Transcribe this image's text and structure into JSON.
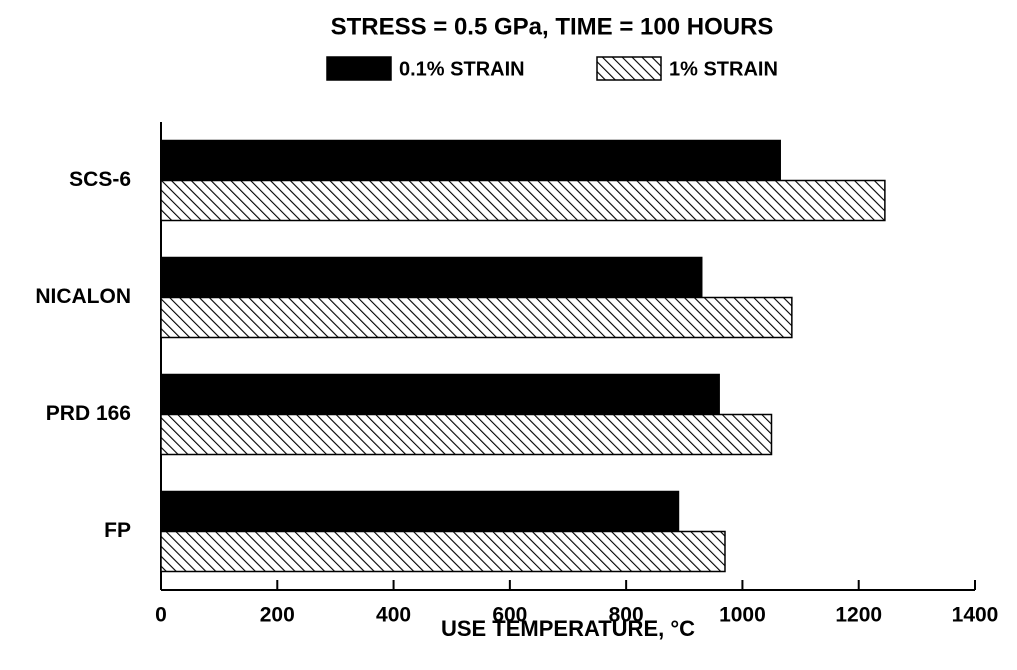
{
  "chart_data": {
    "type": "hbar",
    "title": "STRESS = 0.5 GPa, TIME = 100 HOURS",
    "x_label": "USE TEMPERATURE, °C",
    "categories": [
      "SCS-6",
      "NICALON",
      "PRD 166",
      "FP"
    ],
    "series": [
      {
        "name": "0.1% STRAIN",
        "color": "#000000",
        "hatch": false,
        "values": [
          1065,
          930,
          960,
          890
        ]
      },
      {
        "name": "1% STRAIN",
        "color": "#000000",
        "hatch": true,
        "values": [
          1245,
          1085,
          1050,
          970
        ]
      }
    ],
    "xlim": [
      0,
      1400
    ],
    "xticks": [
      0,
      200,
      400,
      600,
      800,
      1000,
      1200,
      1400
    ],
    "grid": false,
    "legend": "top"
  }
}
